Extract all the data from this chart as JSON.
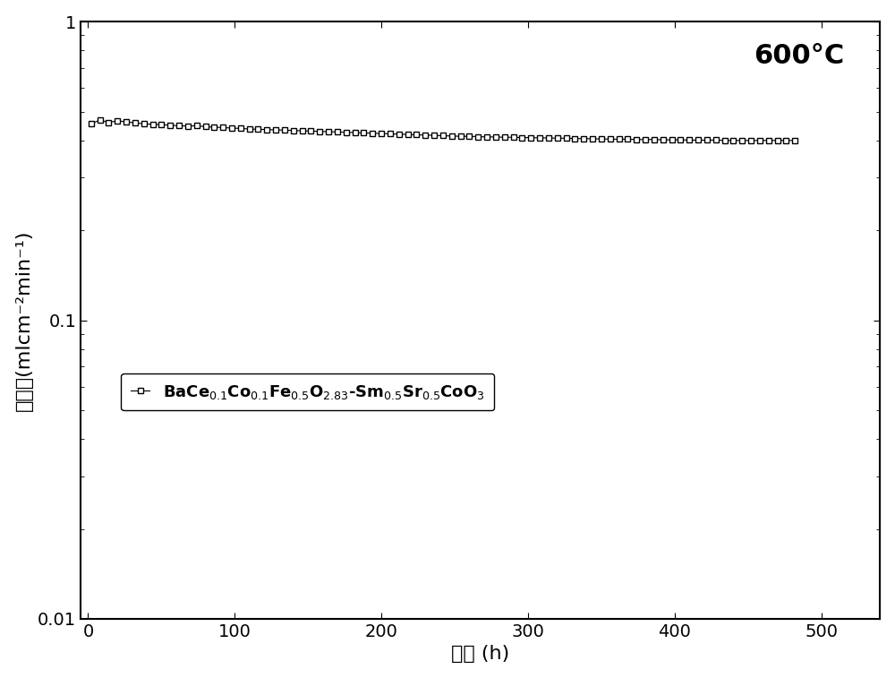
{
  "title_annotation": "600°C",
  "xlabel": "时间 (h)",
  "ylabel": "透氧量(mlcm⁻²min⁻¹)",
  "xlim": [
    -5,
    540
  ],
  "ylim_log": [
    0.01,
    1
  ],
  "xticks": [
    0,
    100,
    200,
    300,
    400,
    500
  ],
  "legend_label": "BaCe$_{0.1}$Co$_{0.1}$Fe$_{0.5}$O$_{2.83}$-Sm$_{0.5}$Sr$_{0.5}$CoO$_3$",
  "data_x": [
    2,
    8,
    14,
    20,
    26,
    32,
    38,
    44,
    50,
    56,
    62,
    68,
    74,
    80,
    86,
    92,
    98,
    104,
    110,
    116,
    122,
    128,
    134,
    140,
    146,
    152,
    158,
    164,
    170,
    176,
    182,
    188,
    194,
    200,
    206,
    212,
    218,
    224,
    230,
    236,
    242,
    248,
    254,
    260,
    266,
    272,
    278,
    284,
    290,
    296,
    302,
    308,
    314,
    320,
    326,
    332,
    338,
    344,
    350,
    356,
    362,
    368,
    374,
    380,
    386,
    392,
    398,
    404,
    410,
    416,
    422,
    428,
    434,
    440,
    446,
    452,
    458,
    464,
    470,
    476,
    482
  ],
  "data_y": [
    0.455,
    0.468,
    0.46,
    0.465,
    0.462,
    0.458,
    0.455,
    0.453,
    0.452,
    0.45,
    0.448,
    0.447,
    0.448,
    0.445,
    0.443,
    0.442,
    0.44,
    0.439,
    0.437,
    0.436,
    0.435,
    0.434,
    0.433,
    0.432,
    0.431,
    0.43,
    0.429,
    0.428,
    0.427,
    0.426,
    0.425,
    0.424,
    0.423,
    0.422,
    0.421,
    0.42,
    0.419,
    0.418,
    0.417,
    0.416,
    0.415,
    0.414,
    0.413,
    0.413,
    0.412,
    0.411,
    0.411,
    0.41,
    0.41,
    0.409,
    0.409,
    0.408,
    0.408,
    0.407,
    0.407,
    0.406,
    0.406,
    0.405,
    0.405,
    0.404,
    0.404,
    0.404,
    0.403,
    0.403,
    0.403,
    0.402,
    0.402,
    0.402,
    0.401,
    0.401,
    0.401,
    0.401,
    0.4,
    0.4,
    0.4,
    0.4,
    0.4,
    0.4,
    0.4,
    0.4,
    0.4
  ],
  "marker": "s",
  "marker_size": 4,
  "line_color": "black",
  "marker_facecolor": "white",
  "marker_edgecolor": "black",
  "background_color": "white",
  "font_size_label": 16,
  "font_size_tick": 14,
  "font_size_annotation": 22,
  "font_size_legend": 13
}
